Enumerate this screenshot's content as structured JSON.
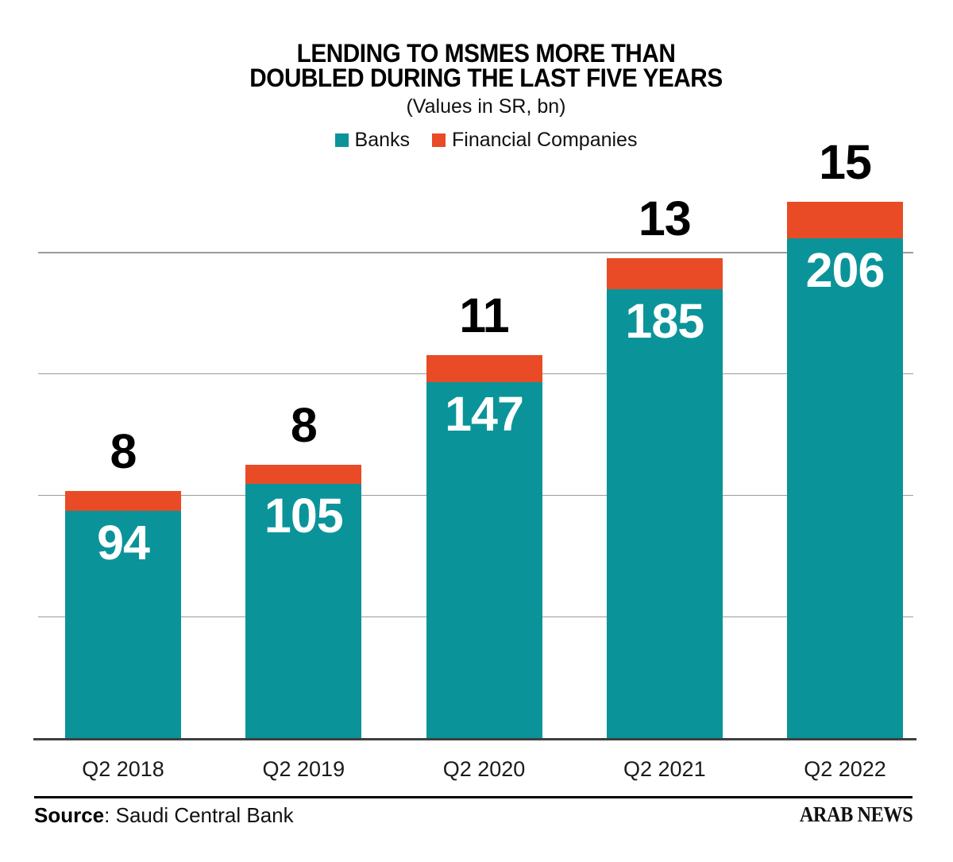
{
  "title": {
    "line1": "LENDING TO MSMES MORE THAN",
    "line2": "DOUBLED DURING THE LAST FIVE YEARS",
    "subtitle": "(Values in SR, bn)"
  },
  "legend": [
    {
      "label": "Banks",
      "color": "#0A949A"
    },
    {
      "label": "Financial Companies",
      "color": "#E84B26"
    }
  ],
  "chart_data": {
    "type": "bar",
    "stacked": true,
    "title": "LENDING TO MSMES MORE THAN DOUBLED DURING THE LAST FIVE YEARS",
    "subtitle": "(Values in SR, bn)",
    "categories": [
      "Q2 2018",
      "Q2 2019",
      "Q2 2020",
      "Q2 2021",
      "Q2 2022"
    ],
    "series": [
      {
        "name": "Banks",
        "color": "#0A949A",
        "values": [
          94,
          105,
          147,
          185,
          206
        ],
        "label_color": "#FFFFFF",
        "label_position": "inside-top"
      },
      {
        "name": "Financial Companies",
        "color": "#E84B26",
        "values": [
          8,
          8,
          11,
          13,
          15
        ],
        "label_color": "#000000",
        "label_position": "above-bar"
      }
    ],
    "xlabel": "",
    "ylabel": "",
    "ylim": [
      0,
      230
    ],
    "gridlines": [
      50,
      100,
      150,
      200
    ],
    "grid": true,
    "y_axis_labels_shown": false,
    "legend_position": "top",
    "colors": {
      "banks": "#0A949A",
      "financial_companies": "#E84B26",
      "gridline": "#9B9B9B",
      "baseline": "#3F3F3F"
    }
  },
  "footer": {
    "source_bold": "Source",
    "source_rest": ": Saudi Central Bank",
    "brand": "ARAB NEWS"
  }
}
